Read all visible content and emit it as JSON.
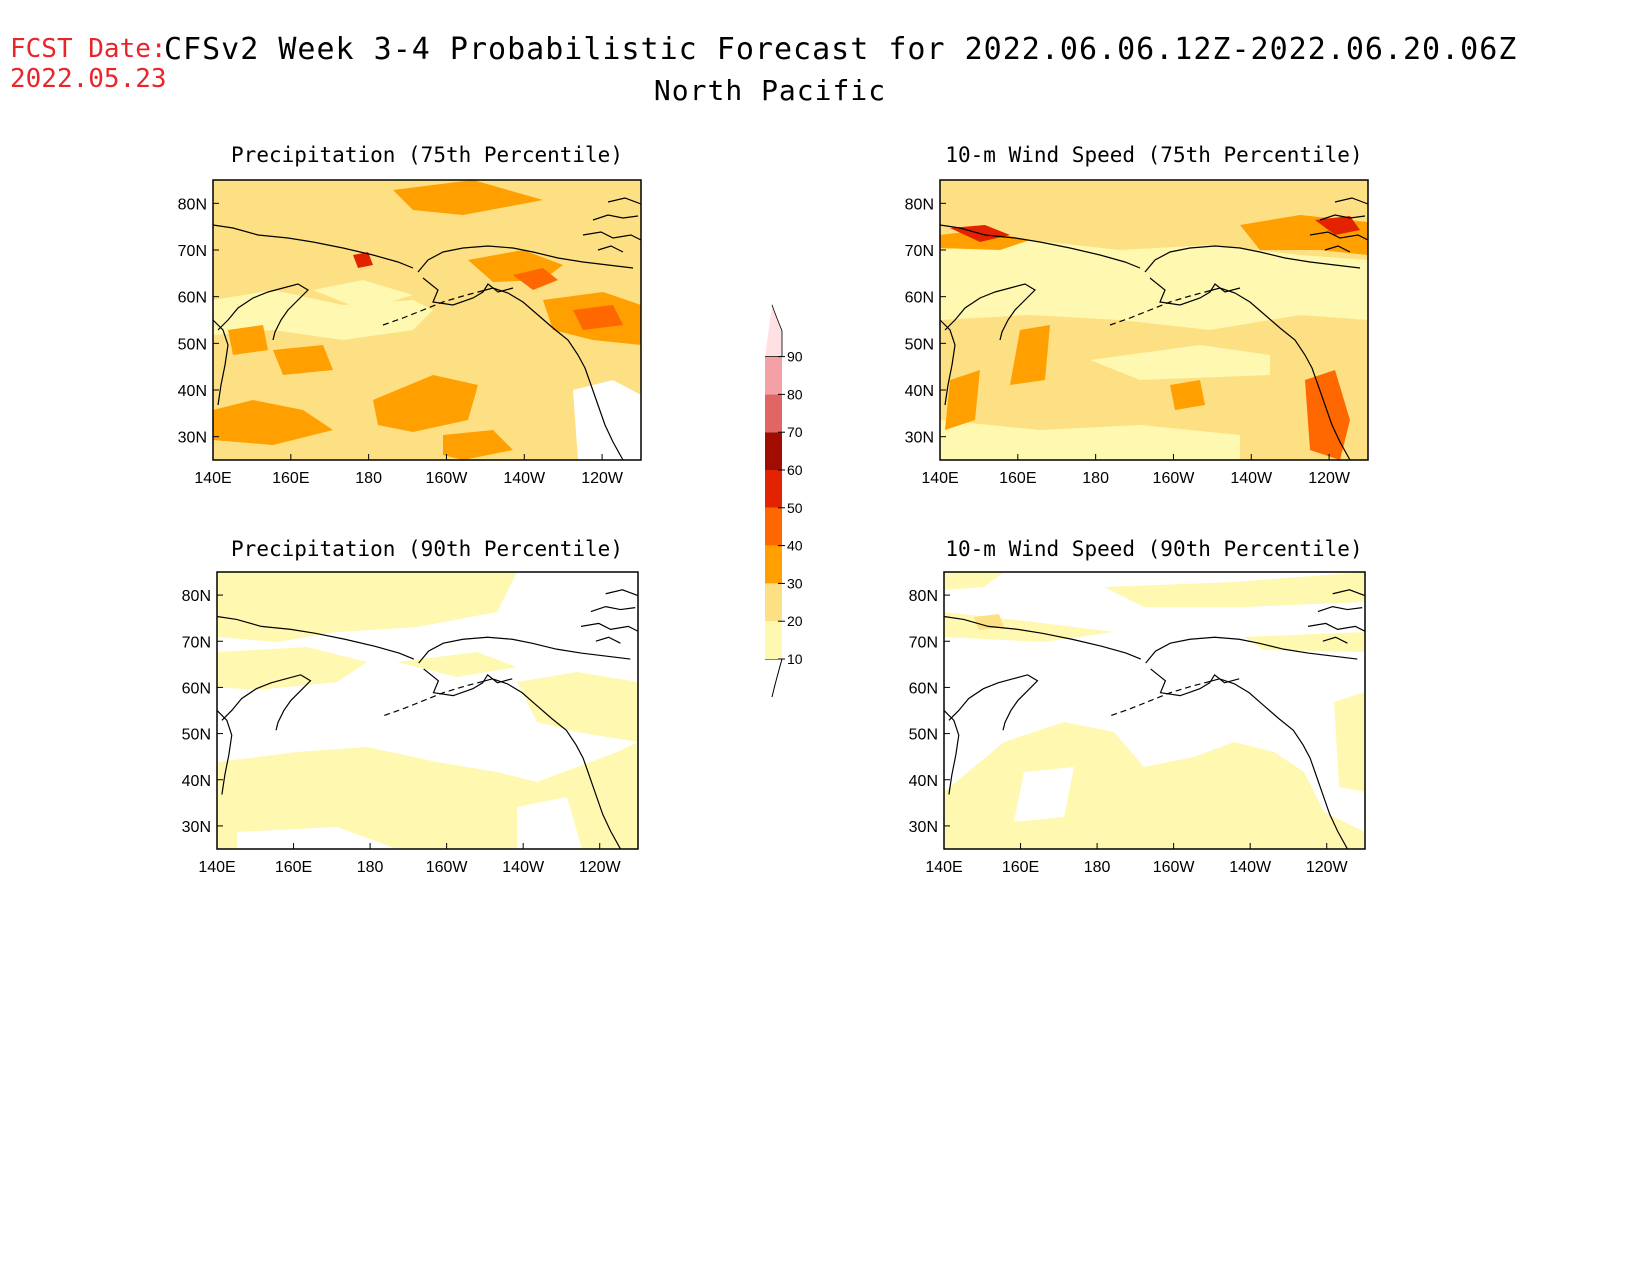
{
  "header": {
    "fcst_label": "FCST Date:",
    "fcst_date": "2022.05.23",
    "title": "CFSv2 Week 3-4 Probabilistic Forecast for 2022.06.06.12Z-2022.06.20.06Z",
    "subtitle": "North Pacific"
  },
  "axes": {
    "lat_labels": [
      "80N",
      "70N",
      "60N",
      "50N",
      "40N",
      "30N"
    ],
    "lon_labels": [
      "140E",
      "160E",
      "180",
      "160W",
      "140W",
      "120W"
    ]
  },
  "panels": [
    {
      "title": "Precipitation (75th Percentile)",
      "dominant_category": "20-30"
    },
    {
      "title": "10-m Wind Speed (75th Percentile)",
      "dominant_category": "20-30"
    },
    {
      "title": "Precipitation (90th Percentile)",
      "dominant_category": "10-20"
    },
    {
      "title": "10-m Wind Speed (90th Percentile)",
      "dominant_category": "<10"
    }
  ],
  "colorbar": {
    "labels": [
      "10",
      "20",
      "30",
      "40",
      "50",
      "60",
      "70",
      "80",
      "90"
    ],
    "colors": [
      "#fff8b0",
      "#fde083",
      "#ff9f00",
      "#ff6800",
      "#e32200",
      "#a00c00",
      "#e06666",
      "#f4a0a4",
      "#ffe1e4"
    ]
  }
}
